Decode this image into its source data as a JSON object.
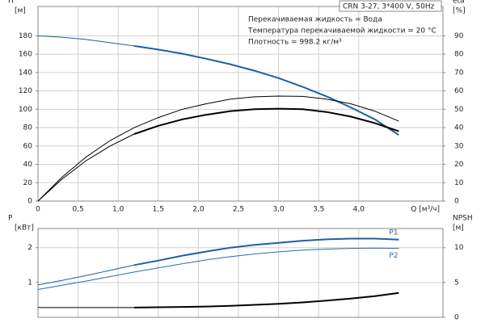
{
  "chart_data": [
    {
      "type": "line",
      "info": "CRN 3-27, 3*400 V, 50Hz",
      "annotations": [
        "Перекачиваемая жидкость = Вода",
        "Температура перекачиваемой жидкости = 20 °C",
        "Плотность = 998.2 кг/м³"
      ],
      "y_label": [
        "H",
        "[м]"
      ],
      "y2_label": [
        "eta",
        "[%]"
      ],
      "x_label": "Q [м³/ч]",
      "x": [
        0,
        0.3,
        0.6,
        0.9,
        1.2,
        1.5,
        1.8,
        2.1,
        2.4,
        2.7,
        3.0,
        3.3,
        3.6,
        3.9,
        4.2,
        4.5
      ],
      "xlim": [
        0,
        5.05
      ],
      "xticks": [
        0,
        {
          "value": 0.5,
          "label": "0,5"
        },
        {
          "value": 1.0,
          "label": "1,0"
        },
        {
          "value": 1.5,
          "label": "1,5"
        },
        {
          "value": 2.0,
          "label": "2,0"
        },
        {
          "value": 2.5,
          "label": "2,5"
        },
        {
          "value": 3.0,
          "label": "3,0"
        },
        {
          "value": 3.5,
          "label": "3,5"
        },
        {
          "value": 4.0,
          "label": "4,0"
        }
      ],
      "ylim": [
        0,
        212
      ],
      "yticks": [
        0,
        20,
        40,
        60,
        80,
        100,
        120,
        140,
        160,
        180
      ],
      "y2lim": [
        0,
        106
      ],
      "y2ticks": [
        0,
        10,
        20,
        30,
        40,
        50,
        60,
        70,
        80,
        90
      ],
      "grid": true,
      "series": [
        {
          "color": "#1f5fa0",
          "width": 1,
          "values": [
            180,
            178.5,
            176,
            172.5,
            169,
            null,
            null,
            null,
            null,
            null,
            null,
            null,
            null,
            null,
            null,
            null
          ]
        },
        {
          "color": "#1f5fa0",
          "width": 2,
          "values": [
            null,
            null,
            null,
            null,
            169,
            165,
            160.5,
            155,
            149,
            142,
            134,
            124.5,
            114,
            102,
            89,
            72
          ]
        },
        {
          "color": "#000000",
          "width": 1,
          "axis": "y2",
          "values": [
            0,
            13,
            24,
            33,
            40,
            45.5,
            50,
            53,
            55.5,
            56.8,
            57.2,
            57,
            55.5,
            53,
            49,
            43.5
          ]
        },
        {
          "color": "#000000",
          "width": 1,
          "axis": "y2",
          "values": [
            0,
            12,
            22,
            30,
            36.5,
            null,
            null,
            null,
            null,
            null,
            null,
            null,
            null,
            null,
            null,
            null
          ]
        },
        {
          "color": "#000000",
          "width": 2,
          "axis": "y2",
          "values": [
            null,
            null,
            null,
            null,
            36.5,
            41,
            44.5,
            47,
            49,
            50,
            50.3,
            50,
            48.5,
            46,
            42.5,
            38
          ]
        }
      ]
    },
    {
      "type": "line",
      "y_label": [
        "P",
        "[кВт]"
      ],
      "y2_label": [
        "NPSH",
        "[м]"
      ],
      "x": [
        0,
        0.3,
        0.6,
        0.9,
        1.2,
        1.5,
        1.8,
        2.1,
        2.4,
        2.7,
        3.0,
        3.3,
        3.6,
        3.9,
        4.2,
        4.5
      ],
      "xlim": [
        0,
        5.05
      ],
      "ylim": [
        0,
        2.55
      ],
      "yticks": [
        1,
        2
      ],
      "y2lim": [
        0,
        12.75
      ],
      "y2ticks": [
        0,
        5,
        10
      ],
      "grid": true,
      "series": [
        {
          "color": "#1f5fa0",
          "width": 1,
          "values": [
            0.93,
            1.06,
            1.2,
            1.35,
            1.5,
            null,
            null,
            null,
            null,
            null,
            null,
            null,
            null,
            null,
            null,
            null
          ]
        },
        {
          "name": "P1",
          "color": "#1f5fa0",
          "width": 2,
          "values": [
            null,
            null,
            null,
            null,
            1.5,
            1.63,
            1.77,
            1.89,
            2.0,
            2.08,
            2.14,
            2.2,
            2.24,
            2.26,
            2.26,
            2.23
          ]
        },
        {
          "name": "P2",
          "color": "#2a6db0",
          "width": 1,
          "values": [
            0.8,
            0.92,
            1.04,
            1.17,
            1.3,
            1.42,
            1.54,
            1.65,
            1.74,
            1.82,
            1.88,
            1.93,
            1.96,
            1.98,
            1.99,
            1.98
          ]
        },
        {
          "color": "#000000",
          "width": 1,
          "axis": "y2",
          "values": [
            1.4,
            1.4,
            1.4,
            1.4,
            1.4,
            null,
            null,
            null,
            null,
            null,
            null,
            null,
            null,
            null,
            null,
            null
          ]
        },
        {
          "color": "#000000",
          "width": 2,
          "axis": "y2",
          "values": [
            null,
            null,
            null,
            null,
            1.4,
            1.45,
            1.5,
            1.55,
            1.65,
            1.8,
            1.95,
            2.15,
            2.4,
            2.7,
            3.05,
            3.5
          ]
        }
      ]
    }
  ]
}
